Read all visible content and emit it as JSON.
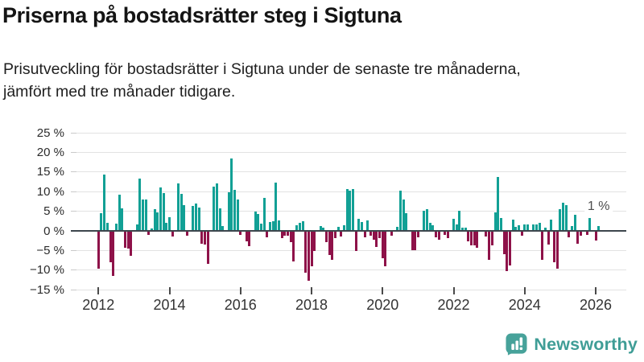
{
  "header": {
    "title": "Priserna på bostadsrätter steg i Sigtuna",
    "subtitle": "Prisutveckling för bostadsrätter i Sigtuna under de senaste tre månaderna, jämfört med tre månader tidigare."
  },
  "annotation": {
    "last_value_label": "1 %"
  },
  "footer": {
    "brand": "Newsworthy",
    "logo_icon": "bar-chart-speech-bubble"
  },
  "colors": {
    "positive_bar": "#12a095",
    "negative_bar": "#8e1249",
    "brand_teal": "#47a29a",
    "brand_text": "#3f9d96",
    "gridline": "#e2e2e2",
    "zero_line": "#3d464d",
    "axis_text": "#333333"
  },
  "chart_data": {
    "type": "bar",
    "title": "Prisutveckling för bostadsrätter i Sigtuna, tre månader jämfört med tre månader tidigare",
    "unit": "%",
    "start_month": "2012-01",
    "end_month": "2026-02",
    "freq": "monthly",
    "ylim": [
      -15,
      25
    ],
    "grid": true,
    "y_ticks": [
      {
        "value": 25,
        "label": "25 %"
      },
      {
        "value": 20,
        "label": "20 %"
      },
      {
        "value": 15,
        "label": "15 %"
      },
      {
        "value": 10,
        "label": "10 %"
      },
      {
        "value": 5,
        "label": "5 %"
      },
      {
        "value": 0,
        "label": "0 %"
      },
      {
        "value": -5,
        "label": "−5 %"
      },
      {
        "value": -10,
        "label": "−10 %"
      },
      {
        "value": -15,
        "label": "−15 %"
      }
    ],
    "x_ticks": [
      {
        "year": 2012,
        "label": "2012"
      },
      {
        "year": 2014,
        "label": "2014"
      },
      {
        "year": 2016,
        "label": "2016"
      },
      {
        "year": 2018,
        "label": "2018"
      },
      {
        "year": 2020,
        "label": "2020"
      },
      {
        "year": 2022,
        "label": "2022"
      },
      {
        "year": 2024,
        "label": "2024"
      },
      {
        "year": 2026,
        "label": "2026"
      }
    ],
    "values": [
      -9.3,
      4.6,
      14.4,
      2.1,
      -7.7,
      -11.2,
      1.9,
      9.3,
      5.7,
      -4.0,
      -4.3,
      -6.2,
      0,
      1.6,
      13.4,
      7.9,
      7.9,
      -0.8,
      0.7,
      5.5,
      4.8,
      11.0,
      9.7,
      2.0,
      3.5,
      -1.2,
      0,
      12.0,
      9.5,
      6.5,
      -1.0,
      0,
      6.3,
      6.9,
      6.0,
      -3.0,
      -3.2,
      -8.2,
      0,
      11.2,
      12.1,
      5.7,
      1.2,
      0,
      9.8,
      18.5,
      10.4,
      7.9,
      -0.7,
      0,
      -2.4,
      -3.6,
      0,
      5.0,
      4.3,
      1.9,
      8.5,
      -1.4,
      2.2,
      2.5,
      12.2,
      2.7,
      -1.6,
      -1.0,
      -1.0,
      -2.6,
      -7.6,
      1.5,
      2.0,
      2.5,
      -10.5,
      -12.4,
      -8.8,
      -4.8,
      0,
      1.2,
      0.8,
      -2.7,
      -6.0,
      -7.2,
      -1.5,
      1.0,
      -1.2,
      1.5,
      10.7,
      10.3,
      10.7,
      -4.8,
      3.0,
      2.2,
      -1.4,
      2.6,
      -1.0,
      -2.0,
      -3.9,
      -1.7,
      -6.8,
      -8.7,
      0,
      -1.0,
      0,
      1.1,
      10.3,
      7.9,
      4.5,
      0,
      -4.7,
      -4.7,
      -1.3,
      0,
      5.1,
      5.5,
      2.1,
      1.4,
      -1.3,
      -2.0,
      0,
      -0.8,
      -1.6,
      0,
      3.1,
      1.6,
      5.2,
      0.9,
      0.9,
      -2.5,
      -3.4,
      -3.4,
      -4.0,
      0,
      0,
      -1.2,
      -7.2,
      -3.4,
      4.8,
      13.8,
      3.2,
      -5.8,
      -10.0,
      -8.6,
      2.9,
      1.1,
      1.4,
      -1.0,
      1.7,
      1.7,
      0,
      1.7,
      1.7,
      2.0,
      -7.2,
      0.9,
      -3.2,
      2.9,
      -7.7,
      -9.3,
      5.6,
      7.1,
      6.6,
      -1.4,
      1.2,
      4.1,
      -3.0,
      -1.0,
      0,
      -0.8,
      3.3,
      0,
      -2.3,
      1.3
    ],
    "last_value_annotation": {
      "text": "1 %",
      "month_index": 169
    },
    "legend": null
  }
}
